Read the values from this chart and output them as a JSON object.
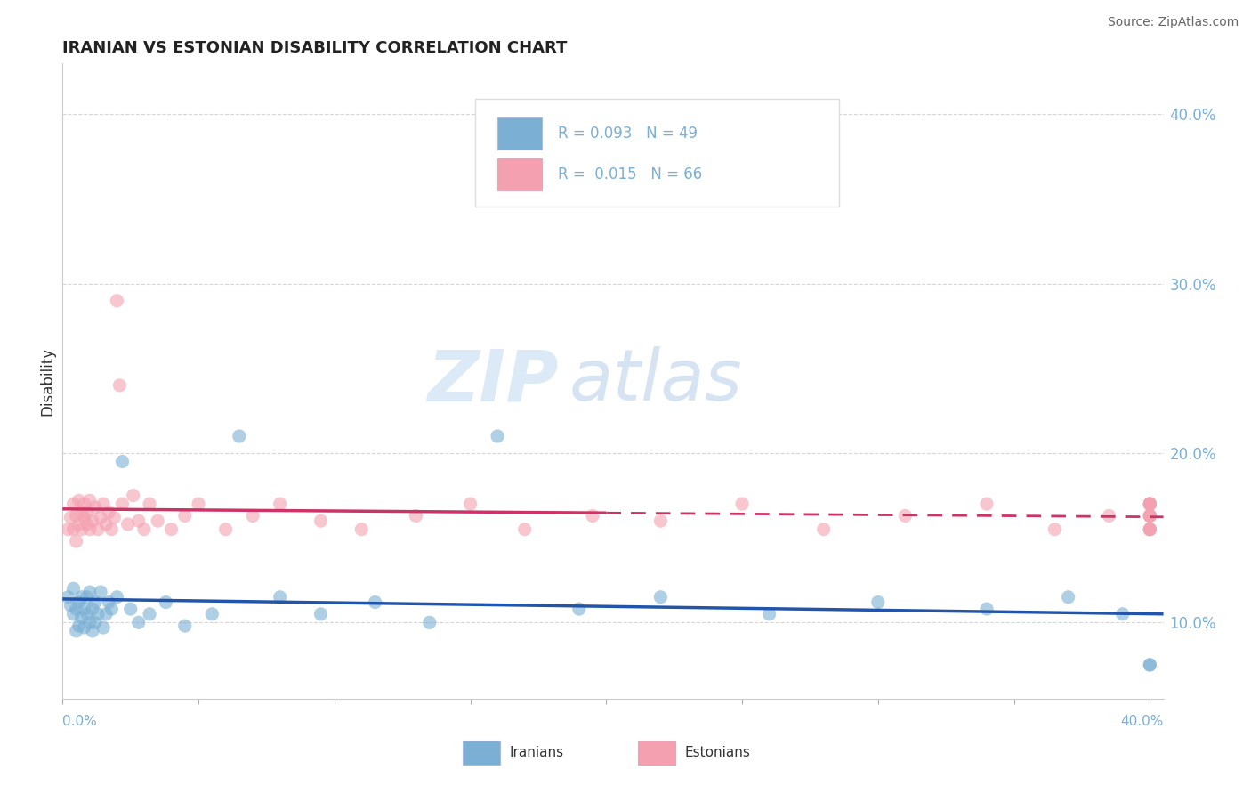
{
  "title": "IRANIAN VS ESTONIAN DISABILITY CORRELATION CHART",
  "source": "Source: ZipAtlas.com",
  "ylabel": "Disability",
  "ylim": [
    0.055,
    0.43
  ],
  "xlim": [
    0.0,
    0.405
  ],
  "yticks": [
    0.1,
    0.2,
    0.3,
    0.4
  ],
  "ytick_labels": [
    "10.0%",
    "20.0%",
    "30.0%",
    "40.0%"
  ],
  "blue_color": "#7BAFD4",
  "pink_color": "#F4A0B0",
  "line_blue": "#2255AA",
  "line_pink": "#CC3366",
  "watermark_zip": "ZIP",
  "watermark_atlas": "atlas",
  "iranians_x": [
    0.002,
    0.003,
    0.004,
    0.004,
    0.005,
    0.005,
    0.006,
    0.006,
    0.007,
    0.007,
    0.008,
    0.008,
    0.009,
    0.009,
    0.01,
    0.01,
    0.011,
    0.011,
    0.012,
    0.012,
    0.013,
    0.014,
    0.015,
    0.016,
    0.017,
    0.018,
    0.02,
    0.022,
    0.025,
    0.028,
    0.032,
    0.038,
    0.045,
    0.055,
    0.065,
    0.08,
    0.095,
    0.115,
    0.135,
    0.16,
    0.19,
    0.22,
    0.26,
    0.3,
    0.34,
    0.37,
    0.39,
    0.4,
    0.4
  ],
  "iranians_y": [
    0.115,
    0.11,
    0.105,
    0.12,
    0.095,
    0.108,
    0.112,
    0.098,
    0.115,
    0.103,
    0.108,
    0.097,
    0.115,
    0.105,
    0.1,
    0.118,
    0.108,
    0.095,
    0.112,
    0.1,
    0.105,
    0.118,
    0.097,
    0.105,
    0.112,
    0.108,
    0.115,
    0.195,
    0.108,
    0.1,
    0.105,
    0.112,
    0.098,
    0.105,
    0.21,
    0.115,
    0.105,
    0.112,
    0.1,
    0.21,
    0.108,
    0.115,
    0.105,
    0.112,
    0.108,
    0.115,
    0.105,
    0.075,
    0.075
  ],
  "estonians_x": [
    0.002,
    0.003,
    0.004,
    0.004,
    0.005,
    0.005,
    0.006,
    0.006,
    0.007,
    0.007,
    0.008,
    0.008,
    0.009,
    0.009,
    0.01,
    0.01,
    0.011,
    0.012,
    0.013,
    0.014,
    0.015,
    0.016,
    0.017,
    0.018,
    0.019,
    0.02,
    0.021,
    0.022,
    0.024,
    0.026,
    0.028,
    0.03,
    0.032,
    0.035,
    0.04,
    0.045,
    0.05,
    0.06,
    0.07,
    0.08,
    0.095,
    0.11,
    0.13,
    0.15,
    0.17,
    0.195,
    0.22,
    0.25,
    0.28,
    0.31,
    0.34,
    0.365,
    0.385,
    0.4,
    0.4,
    0.4,
    0.4,
    0.4,
    0.4,
    0.4,
    0.4,
    0.4,
    0.4,
    0.4,
    0.4,
    0.4
  ],
  "estonians_y": [
    0.155,
    0.162,
    0.17,
    0.155,
    0.163,
    0.148,
    0.158,
    0.172,
    0.165,
    0.155,
    0.162,
    0.17,
    0.158,
    0.165,
    0.155,
    0.172,
    0.16,
    0.168,
    0.155,
    0.162,
    0.17,
    0.158,
    0.165,
    0.155,
    0.162,
    0.29,
    0.24,
    0.17,
    0.158,
    0.175,
    0.16,
    0.155,
    0.17,
    0.16,
    0.155,
    0.163,
    0.17,
    0.155,
    0.163,
    0.17,
    0.16,
    0.155,
    0.163,
    0.17,
    0.155,
    0.163,
    0.16,
    0.17,
    0.155,
    0.163,
    0.17,
    0.155,
    0.163,
    0.17,
    0.155,
    0.163,
    0.17,
    0.155,
    0.163,
    0.17,
    0.155,
    0.163,
    0.17,
    0.155,
    0.163,
    0.17
  ]
}
